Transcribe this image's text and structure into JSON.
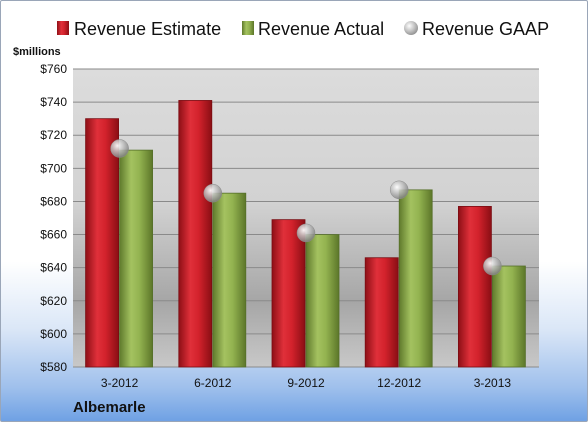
{
  "chart_data": {
    "type": "bar",
    "ylabel": "$millions",
    "company": "Albemarle",
    "categories": [
      "3-2012",
      "6-2012",
      "9-2012",
      "12-2012",
      "3-2013"
    ],
    "series": [
      {
        "name": "Revenue Estimate",
        "kind": "bar",
        "color": "#d0202a",
        "values": [
          730,
          741,
          669,
          646,
          677
        ]
      },
      {
        "name": "Revenue Actual",
        "kind": "bar",
        "color": "#8fb04c",
        "values": [
          711,
          685,
          660,
          687,
          641
        ]
      },
      {
        "name": "Revenue GAAP",
        "kind": "marker",
        "color": "#b9b9b9",
        "values": [
          712,
          685,
          661,
          687,
          641
        ]
      }
    ],
    "ylim": [
      580,
      760
    ],
    "yticks": [
      580,
      600,
      620,
      640,
      660,
      680,
      700,
      720,
      740,
      760
    ],
    "ytick_labels": [
      "$580",
      "$600",
      "$620",
      "$640",
      "$660",
      "$680",
      "$700",
      "$720",
      "$740",
      "$760"
    ],
    "grid": true,
    "legend": "top"
  }
}
